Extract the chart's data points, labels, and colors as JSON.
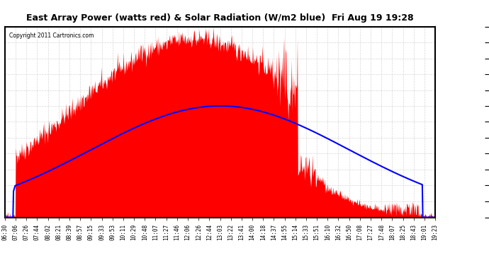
{
  "title": "East Array Power (watts red) & Solar Radiation (W/m2 blue)  Fri Aug 19 19:28",
  "copyright": "Copyright 2011 Cartronics.com",
  "background_color": "#ffffff",
  "plot_bg_color": "#ffffff",
  "grid_color": "#cccccc",
  "yticks": [
    0.0,
    124.2,
    248.4,
    372.6,
    496.8,
    621.0,
    745.2,
    869.4,
    993.5,
    1117.7,
    1241.9,
    1366.1,
    1490.3
  ],
  "ymax": 1490.3,
  "ymin": 0.0,
  "red_color": "#ff0000",
  "blue_color": "#0000ff",
  "xtick_labels": [
    "06:30",
    "07:06",
    "07:26",
    "07:44",
    "08:02",
    "08:21",
    "08:39",
    "08:57",
    "09:15",
    "09:33",
    "09:53",
    "10:11",
    "10:29",
    "10:48",
    "11:07",
    "11:27",
    "11:46",
    "12:06",
    "12:26",
    "12:44",
    "13:03",
    "13:22",
    "13:41",
    "14:00",
    "14:18",
    "14:37",
    "14:55",
    "15:14",
    "15:33",
    "15:51",
    "16:10",
    "16:32",
    "16:50",
    "17:08",
    "17:27",
    "17:48",
    "18:07",
    "18:25",
    "18:43",
    "19:01",
    "19:23"
  ]
}
